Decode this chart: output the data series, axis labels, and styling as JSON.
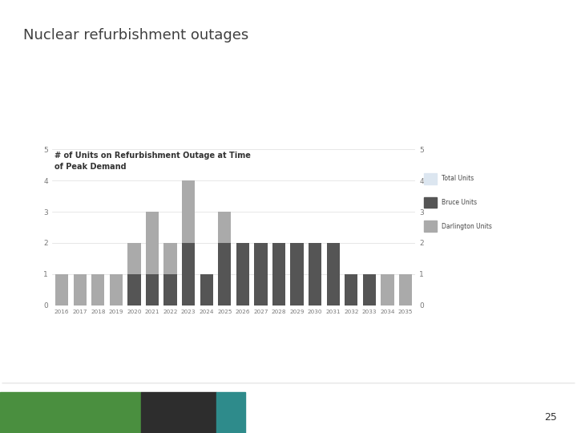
{
  "title": "Nuclear refurbishment outages",
  "subtitle": "# of Units on Refurbishment Outage at Time\nof Peak Demand",
  "years": [
    2016,
    2017,
    2018,
    2019,
    2020,
    2021,
    2022,
    2023,
    2024,
    2025,
    2026,
    2027,
    2028,
    2029,
    2030,
    2031,
    2032,
    2033,
    2034,
    2035
  ],
  "total_units": [
    1,
    1,
    1,
    1,
    2,
    3,
    2,
    4,
    1,
    3,
    2,
    2,
    2,
    2,
    2,
    2,
    1,
    1,
    1,
    1
  ],
  "bruce_units": [
    0,
    0,
    0,
    0,
    1,
    1,
    1,
    2,
    1,
    2,
    2,
    2,
    2,
    2,
    2,
    2,
    1,
    1,
    0,
    0
  ],
  "darlington_units": [
    1,
    1,
    1,
    1,
    1,
    2,
    1,
    2,
    0,
    1,
    0,
    0,
    0,
    0,
    0,
    0,
    0,
    0,
    1,
    1
  ],
  "color_total": "#dce6f0",
  "color_bruce": "#555555",
  "color_darlington": "#aaaaaa",
  "ylim": [
    0,
    5
  ],
  "yticks": [
    0,
    1,
    2,
    3,
    4,
    5
  ],
  "bg_color": "#ffffff",
  "title_color": "#404040",
  "title_fontsize": 13,
  "subtitle_fontsize": 7,
  "page_num": "25",
  "footer_green": "#4a8f3f",
  "footer_dark": "#2d2d2d",
  "footer_teal": "#2e8b8b"
}
